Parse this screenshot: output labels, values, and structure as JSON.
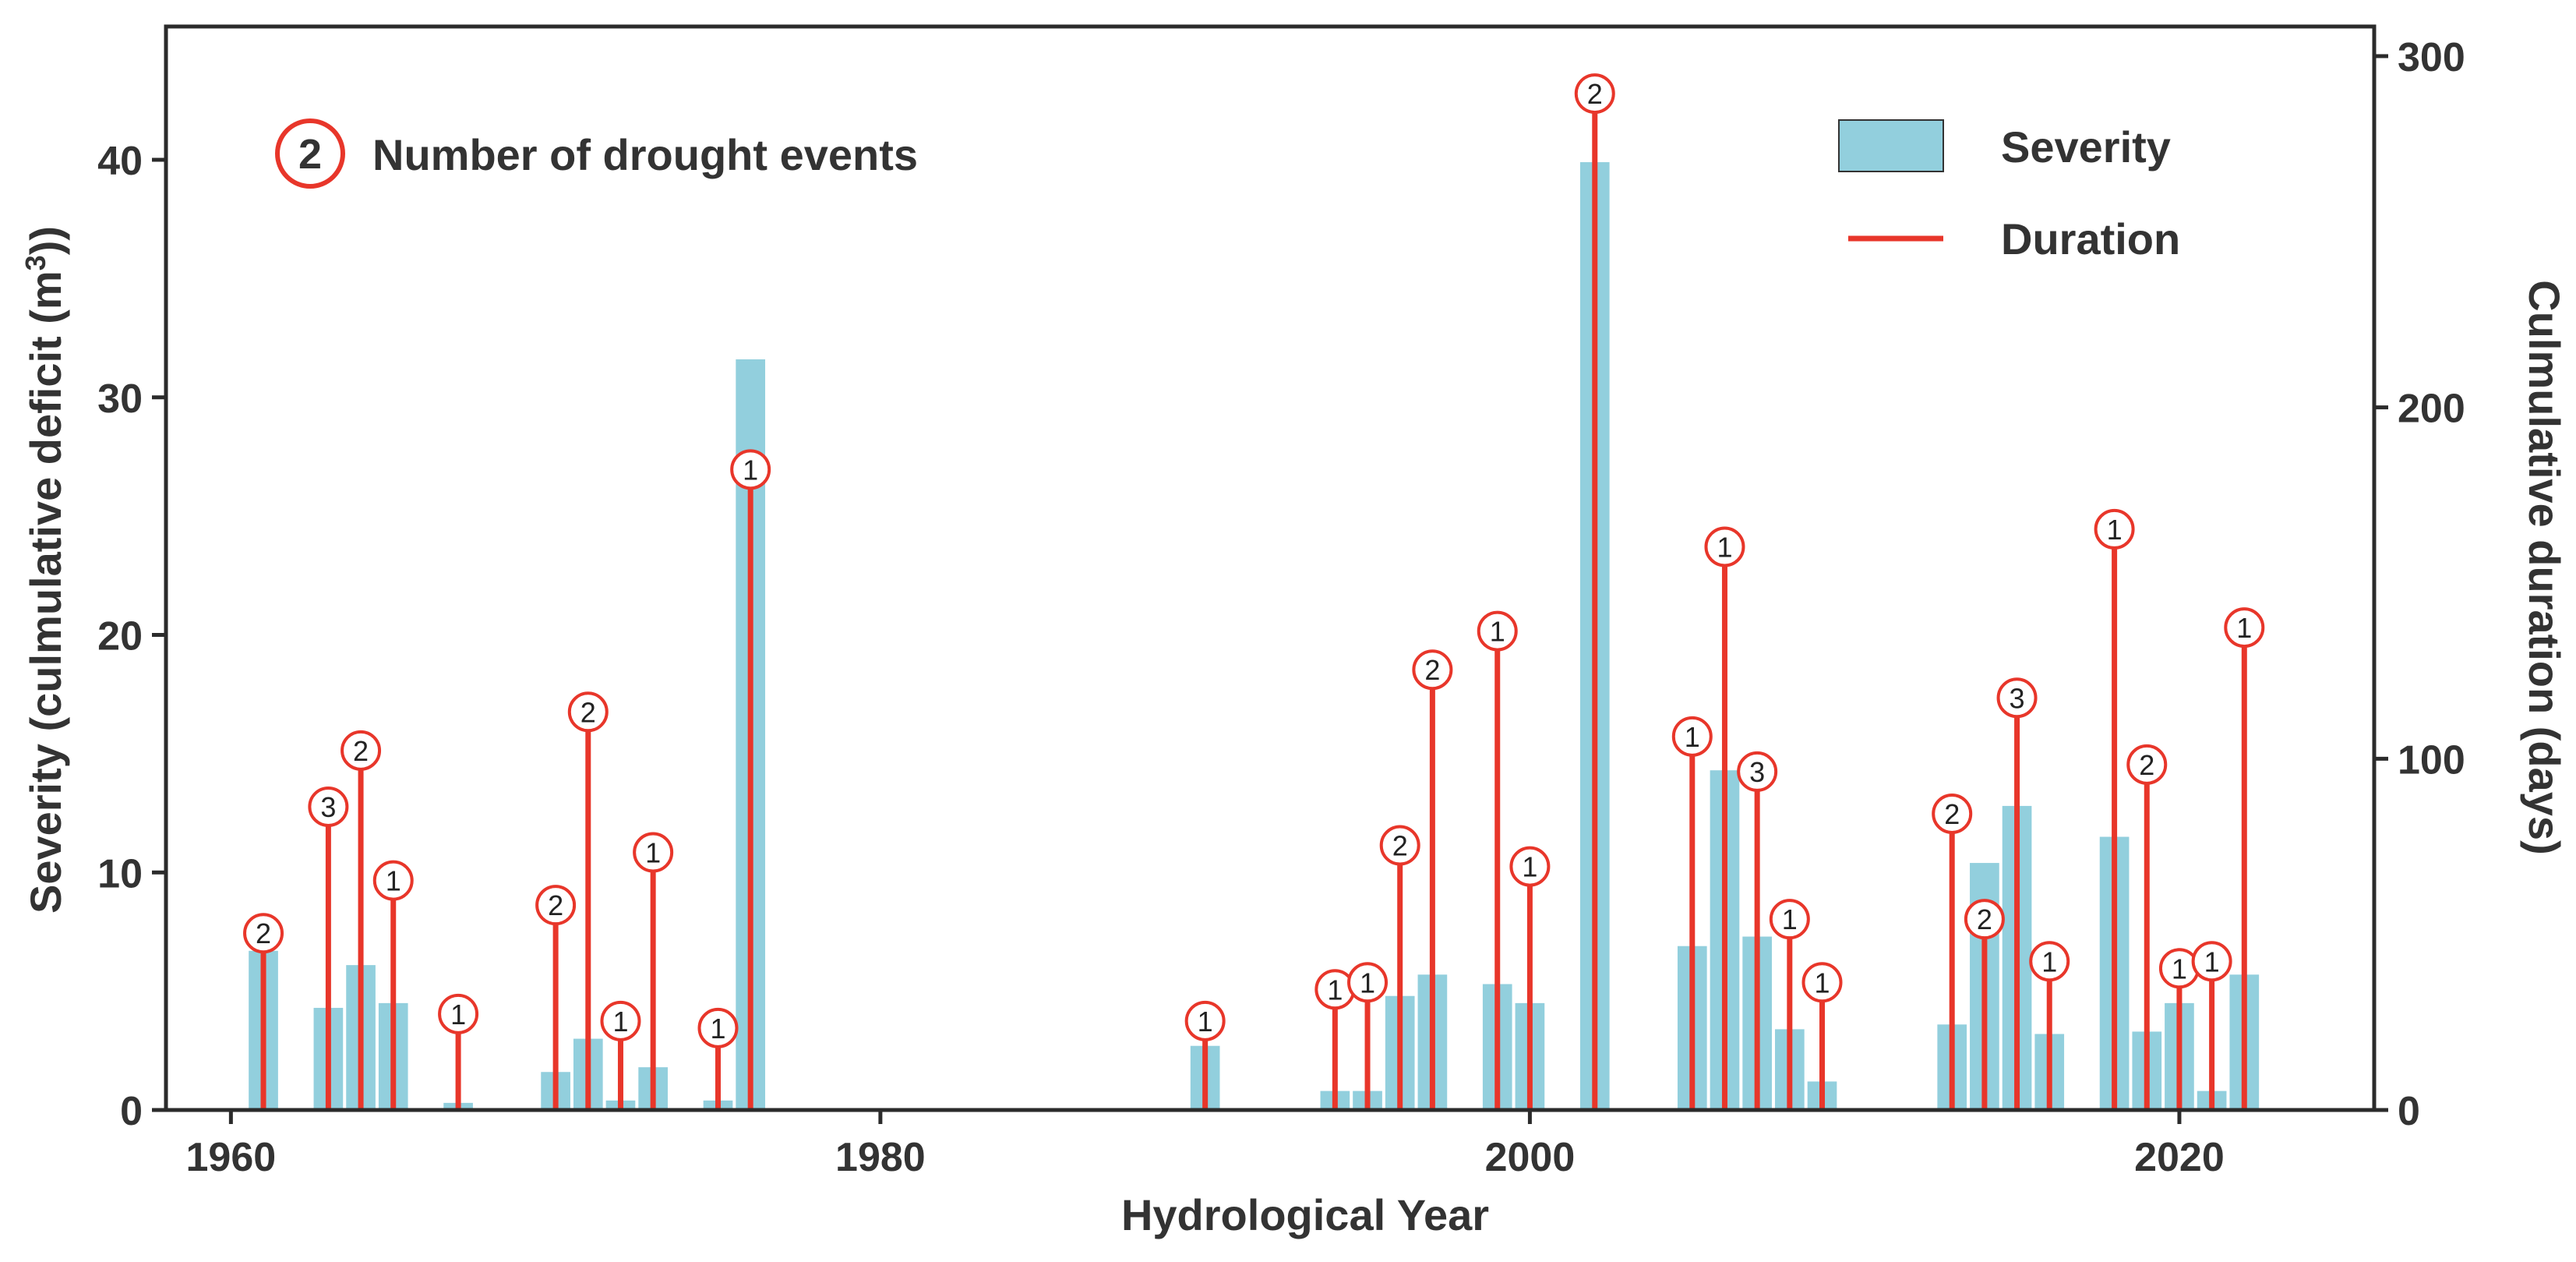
{
  "chart_data": {
    "type": "bar+line",
    "xlabel": "Hydrological Year",
    "ylabel_left": "Severity (culmulative deficit (m",
    "ylabel_left_sup": "3",
    "ylabel_left_end": "))",
    "ylabel_right": "Culmulative duration (days)",
    "xlim": [
      1958,
      2026
    ],
    "ylim_left": [
      0,
      45
    ],
    "ylim_right": [
      0,
      307
    ],
    "x_ticks": [
      1960,
      1980,
      2000,
      2020
    ],
    "y_left_ticks": [
      0,
      10,
      20,
      30,
      40
    ],
    "y_right_ticks": [
      0,
      100,
      200,
      300
    ],
    "colors": {
      "severity": "#92cfdd",
      "duration": "#e8362a",
      "axis": "#2b2b2b"
    },
    "legend": {
      "severity_label": "Severity",
      "duration_label": "Duration",
      "events_symbol": "2",
      "events_label": "Number of drought events"
    },
    "severity": {
      "name": "Severity",
      "years": [
        1961,
        1963,
        1964,
        1965,
        1967,
        1970,
        1971,
        1972,
        1973,
        1975,
        1976,
        1990,
        1994,
        1995,
        1996,
        1997,
        1999,
        2000,
        2002,
        2005,
        2006,
        2007,
        2008,
        2009,
        2013,
        2014,
        2015,
        2016,
        2018,
        2019,
        2020,
        2021,
        2022
      ],
      "values": [
        6.7,
        4.3,
        6.1,
        4.5,
        0.3,
        1.6,
        3.0,
        0.4,
        1.8,
        0.4,
        31.6,
        2.7,
        0.8,
        0.8,
        4.8,
        5.7,
        5.3,
        4.5,
        39.9,
        6.9,
        14.3,
        7.3,
        3.4,
        1.2,
        3.6,
        10.4,
        12.8,
        3.2,
        11.5,
        3.3,
        4.5,
        0.8,
        5.7
      ]
    },
    "duration": {
      "name": "Duration",
      "years": [
        1961,
        1963,
        1964,
        1965,
        1967,
        1970,
        1971,
        1972,
        1973,
        1975,
        1976,
        1990,
        1994,
        1995,
        1996,
        1997,
        1999,
        2000,
        2002,
        2005,
        2006,
        2007,
        2008,
        2009,
        2013,
        2014,
        2015,
        2016,
        2018,
        2019,
        2020,
        2021,
        2022
      ],
      "days": [
        45,
        81,
        97,
        60,
        22,
        53,
        108,
        20,
        68,
        18,
        177,
        20,
        29,
        31,
        70,
        120,
        131,
        64,
        284,
        101,
        155,
        91,
        49,
        31,
        79,
        49,
        112,
        37,
        160,
        93,
        35,
        37,
        132
      ],
      "events": [
        "2",
        "3",
        "2",
        "1",
        "1",
        "2",
        "2",
        "1",
        "1",
        "1",
        "1",
        "1",
        "1",
        "1",
        "2",
        "2",
        "1",
        "1",
        "2",
        "1",
        "1",
        "3",
        "1",
        "1",
        "2",
        "2",
        "3",
        "1",
        "1",
        "2",
        "1",
        "1",
        "1"
      ]
    }
  }
}
